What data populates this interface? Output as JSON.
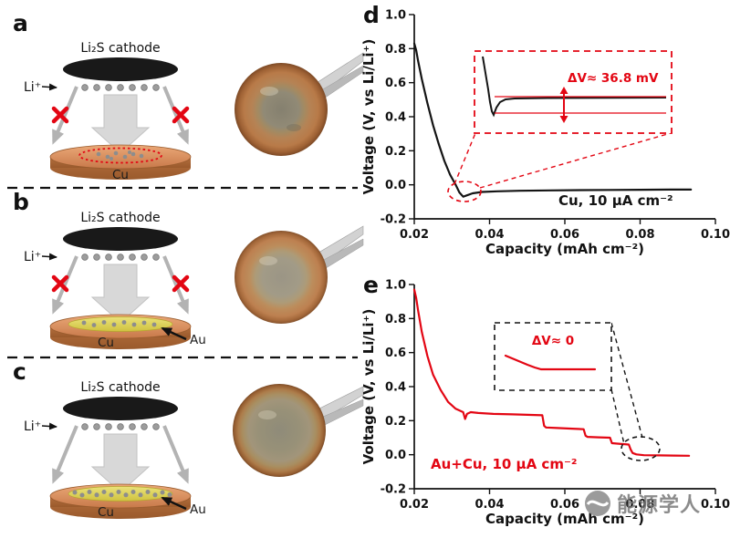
{
  "diagrams": {
    "a": {
      "letter": "a",
      "cathode": "Li₂S cathode",
      "ion": "Li⁺",
      "substrate": "Cu"
    },
    "b": {
      "letter": "b",
      "cathode": "Li₂S cathode",
      "ion": "Li⁺",
      "substrate": "Cu",
      "coating": "Au"
    },
    "c": {
      "letter": "c",
      "cathode": "Li₂S cathode",
      "ion": "Li⁺",
      "substrate": "Cu",
      "coating": "Au"
    }
  },
  "watermark": {
    "text": "能源学人"
  },
  "colors": {
    "curve_cu": "#141414",
    "curve_aucu": "#e30613",
    "copper": "#c8794a",
    "gold": "#cfc23f",
    "highlight_red": "#e30613"
  },
  "chart_data": [
    {
      "id": "d",
      "panel": "d",
      "type": "line",
      "xlabel": "Capacity (mAh cm⁻²)",
      "ylabel": "Voltage (V, vs Li/Li⁺)",
      "xlim": [
        0.02,
        0.1
      ],
      "ylim": [
        -0.2,
        1.0
      ],
      "xticks": [
        0.02,
        0.04,
        0.06,
        0.08,
        0.1
      ],
      "xtick_labels": [
        "0.02",
        "0.04",
        "0.06",
        "0.08",
        "0.10"
      ],
      "yticks": [
        -0.2,
        0.0,
        0.2,
        0.4,
        0.6,
        0.8,
        1.0
      ],
      "ytick_labels": [
        "-0.2",
        "0.0",
        "0.2",
        "0.4",
        "0.6",
        "0.8",
        "1.0"
      ],
      "series": [
        {
          "name": "Cu",
          "color": "#141414",
          "points": [
            [
              0.02,
              0.83
            ],
            [
              0.0205,
              0.79
            ],
            [
              0.021,
              0.73
            ],
            [
              0.022,
              0.62
            ],
            [
              0.0235,
              0.48
            ],
            [
              0.025,
              0.35
            ],
            [
              0.0265,
              0.24
            ],
            [
              0.028,
              0.14
            ],
            [
              0.0295,
              0.06
            ],
            [
              0.031,
              0.0
            ],
            [
              0.032,
              -0.045
            ],
            [
              0.033,
              -0.07
            ],
            [
              0.034,
              -0.062
            ],
            [
              0.0355,
              -0.05
            ],
            [
              0.038,
              -0.042
            ],
            [
              0.042,
              -0.038
            ],
            [
              0.048,
              -0.035
            ],
            [
              0.056,
              -0.033
            ],
            [
              0.064,
              -0.031
            ],
            [
              0.072,
              -0.03
            ],
            [
              0.08,
              -0.029
            ],
            [
              0.088,
              -0.028
            ],
            [
              0.0935,
              -0.028
            ]
          ]
        }
      ],
      "annotation": "Cu, 10 μA cm⁻²",
      "annotation_color": "#141414",
      "inset_label": "ΔV≈ 36.8 mV",
      "inset_color": "#e30613",
      "overpotential_mV": 36.8,
      "legend": "none",
      "grid": false
    },
    {
      "id": "e",
      "panel": "e",
      "type": "line",
      "xlabel": "Capacity (mAh cm⁻²)",
      "ylabel": "Voltage (V, vs Li/Li⁺)",
      "xlim": [
        0.02,
        0.1
      ],
      "ylim": [
        -0.2,
        1.0
      ],
      "xticks": [
        0.02,
        0.04,
        0.06,
        0.08,
        0.1
      ],
      "xtick_labels": [
        "0.02",
        "0.04",
        "0.06",
        "0.08",
        "0.10"
      ],
      "yticks": [
        -0.2,
        0.0,
        0.2,
        0.4,
        0.6,
        0.8,
        1.0
      ],
      "ytick_labels": [
        "-0.2",
        "0.0",
        "0.2",
        "0.4",
        "0.6",
        "0.8",
        "1.0"
      ],
      "series": [
        {
          "name": "Au+Cu",
          "color": "#e30613",
          "points": [
            [
              0.02,
              0.97
            ],
            [
              0.0205,
              0.92
            ],
            [
              0.021,
              0.85
            ],
            [
              0.022,
              0.72
            ],
            [
              0.0235,
              0.58
            ],
            [
              0.025,
              0.47
            ],
            [
              0.027,
              0.38
            ],
            [
              0.029,
              0.31
            ],
            [
              0.031,
              0.27
            ],
            [
              0.033,
              0.25
            ],
            [
              0.0335,
              0.21
            ],
            [
              0.034,
              0.24
            ],
            [
              0.035,
              0.25
            ],
            [
              0.037,
              0.245
            ],
            [
              0.041,
              0.24
            ],
            [
              0.046,
              0.237
            ],
            [
              0.051,
              0.234
            ],
            [
              0.054,
              0.232
            ],
            [
              0.0545,
              0.17
            ],
            [
              0.055,
              0.16
            ],
            [
              0.058,
              0.157
            ],
            [
              0.062,
              0.153
            ],
            [
              0.065,
              0.15
            ],
            [
              0.0655,
              0.112
            ],
            [
              0.066,
              0.105
            ],
            [
              0.069,
              0.102
            ],
            [
              0.072,
              0.1
            ],
            [
              0.0725,
              0.068
            ],
            [
              0.075,
              0.063
            ],
            [
              0.077,
              0.06
            ],
            [
              0.0775,
              0.03
            ],
            [
              0.078,
              0.01
            ],
            [
              0.079,
              0.002
            ],
            [
              0.081,
              -0.003
            ],
            [
              0.085,
              -0.004
            ],
            [
              0.089,
              -0.005
            ],
            [
              0.093,
              -0.006
            ]
          ]
        }
      ],
      "annotation": "Au+Cu, 10 μA cm⁻²",
      "annotation_color": "#e30613",
      "inset_label": "ΔV≈ 0",
      "inset_color": "#e30613",
      "overpotential_mV": 0,
      "legend": "none",
      "grid": false
    }
  ]
}
